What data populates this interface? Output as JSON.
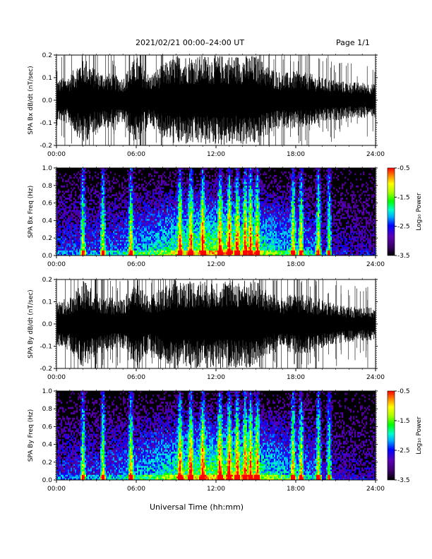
{
  "header": {
    "title": "2021/02/21  00:00–24:00 UT",
    "page": "Page 1/1"
  },
  "footer": {
    "xlabel": "Universal Time (hh:mm)"
  },
  "colors": {
    "trace": "#000000",
    "background": "#ffffff",
    "colormap": [
      "#000000",
      "#3b0066",
      "#5a00b4",
      "#0000ff",
      "#00aaff",
      "#00ffcc",
      "#00ff00",
      "#aaff00",
      "#ffff00",
      "#ff8800",
      "#ff0000"
    ]
  },
  "chart_data": [
    {
      "type": "line",
      "ylabel": "SPA Bx dB/dt (nT/sec)",
      "ylim": [
        -0.2,
        0.2
      ],
      "yticks": [
        "0.2",
        "0.1",
        "0.0",
        "-0.1",
        "-0.2"
      ],
      "xticks": [
        "00:00",
        "06:00",
        "12:00",
        "18:00",
        "24:00"
      ],
      "xlim": [
        0,
        24
      ],
      "envelope": {
        "hours": [
          0,
          1,
          2,
          3,
          4,
          5,
          6,
          7,
          8,
          9,
          10,
          11,
          12,
          13,
          14,
          15,
          16,
          17,
          18,
          19,
          20,
          21,
          22,
          23,
          24
        ],
        "amplitude": [
          0.09,
          0.11,
          0.2,
          0.13,
          0.12,
          0.1,
          0.2,
          0.11,
          0.16,
          0.2,
          0.2,
          0.2,
          0.2,
          0.2,
          0.2,
          0.2,
          0.15,
          0.12,
          0.13,
          0.12,
          0.1,
          0.09,
          0.08,
          0.08,
          0.07
        ]
      },
      "grid": false
    },
    {
      "type": "heatmap",
      "ylabel": "SPA Bx Freq (Hz)",
      "ylim": [
        0.0,
        1.0
      ],
      "yticks": [
        "1.0",
        "0.8",
        "0.6",
        "0.4",
        "0.2",
        "0.0"
      ],
      "xticks": [
        "00:00",
        "06:00",
        "12:00",
        "18:00",
        "24:00"
      ],
      "xlim": [
        0,
        24
      ],
      "colorbar": {
        "label": "Log₁₀ Power",
        "ticks": [
          "-0.5",
          "-1.5",
          "-2.5",
          "-3.5"
        ],
        "range": [
          -3.5,
          -0.5
        ]
      },
      "bursts_hours": [
        2.0,
        3.5,
        5.6,
        9.3,
        10.1,
        11.0,
        12.3,
        13.0,
        13.6,
        14.2,
        14.6,
        15.1,
        17.8,
        18.4,
        19.7,
        20.5
      ]
    },
    {
      "type": "line",
      "ylabel": "SPA By dB/dt (nT/sec)",
      "ylim": [
        -0.2,
        0.2
      ],
      "yticks": [
        "0.2",
        "0.1",
        "0.0",
        "-0.1",
        "-0.2"
      ],
      "xticks": [
        "00:00",
        "06:00",
        "12:00",
        "18:00",
        "24:00"
      ],
      "xlim": [
        0,
        24
      ],
      "envelope": {
        "hours": [
          0,
          1,
          2,
          3,
          4,
          5,
          6,
          7,
          8,
          9,
          10,
          11,
          12,
          13,
          14,
          15,
          16,
          17,
          18,
          19,
          20,
          21,
          22,
          23,
          24
        ],
        "amplitude": [
          0.1,
          0.12,
          0.2,
          0.14,
          0.12,
          0.11,
          0.2,
          0.12,
          0.17,
          0.2,
          0.2,
          0.2,
          0.2,
          0.2,
          0.2,
          0.2,
          0.14,
          0.12,
          0.14,
          0.13,
          0.11,
          0.09,
          0.08,
          0.08,
          0.07
        ]
      },
      "grid": false
    },
    {
      "type": "heatmap",
      "ylabel": "SPA By Freq (Hz)",
      "ylim": [
        0.0,
        1.0
      ],
      "yticks": [
        "1.0",
        "0.8",
        "0.6",
        "0.4",
        "0.2",
        "0.0"
      ],
      "xticks": [
        "00:00",
        "06:00",
        "12:00",
        "18:00",
        "24:00"
      ],
      "xlim": [
        0,
        24
      ],
      "colorbar": {
        "label": "Log₁₀ Power",
        "ticks": [
          "-0.5",
          "-1.5",
          "-2.5",
          "-3.5"
        ],
        "range": [
          -3.5,
          -0.5
        ]
      },
      "bursts_hours": [
        2.0,
        3.5,
        5.6,
        9.3,
        10.1,
        11.0,
        12.3,
        13.0,
        13.6,
        14.2,
        14.6,
        15.1,
        17.8,
        18.4,
        19.7,
        20.5
      ]
    }
  ]
}
